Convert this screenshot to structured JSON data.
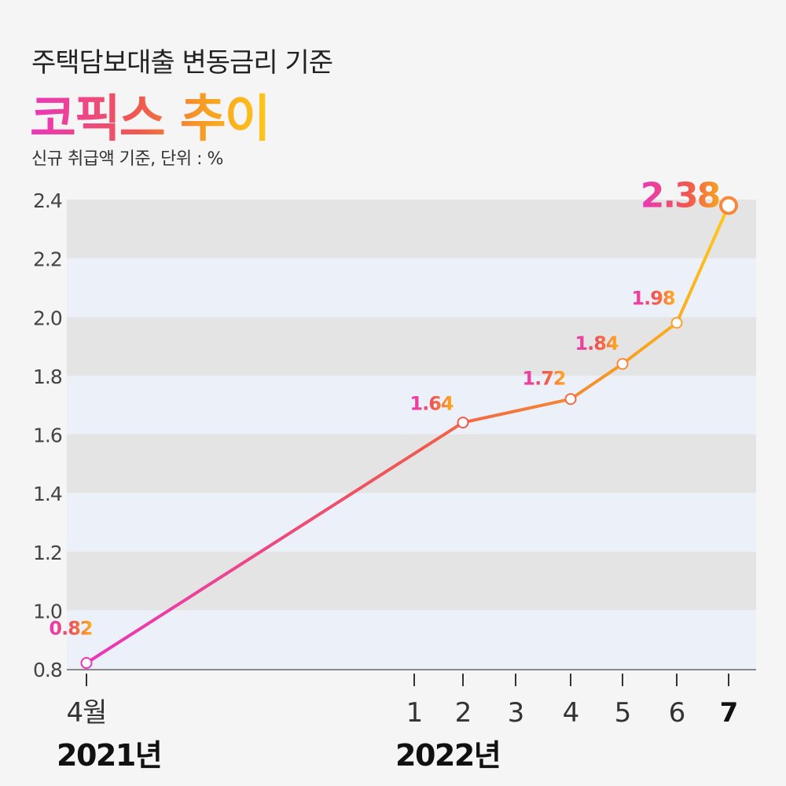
{
  "header": {
    "title_top": "주택담보대출 변동금리 기준",
    "title_main": "코픽스 추이",
    "subtitle": "신규 취급액 기준, 단위 : %"
  },
  "years": {
    "first": "2021년",
    "second": "2022년"
  },
  "colors": {
    "pink": "#ea36bd",
    "orange": "#f7893c",
    "yellow": "#ffc81a",
    "band_dark": "#e4e4e4",
    "band_light": "#ecf0f8"
  },
  "chart_data": {
    "type": "line",
    "title": "코픽스 추이",
    "subtitle": "신규 취급액 기준, 단위 : %",
    "categories": [
      "4월",
      "1",
      "2",
      "3",
      "4",
      "5",
      "6",
      "7"
    ],
    "series": [
      {
        "points": [
          {
            "label": "4월",
            "value": 0.82
          },
          {
            "label": "2",
            "value": 1.64
          },
          {
            "label": "4",
            "value": 1.72
          },
          {
            "label": "5",
            "value": 1.84
          },
          {
            "label": "6",
            "value": 1.98
          },
          {
            "label": "7",
            "value": 2.38
          }
        ]
      }
    ],
    "ylim": [
      0.8,
      2.4
    ],
    "yticks": [
      "0.8",
      "1.0",
      "1.2",
      "1.4",
      "1.6",
      "1.8",
      "2.0",
      "2.2",
      "2.4"
    ]
  }
}
